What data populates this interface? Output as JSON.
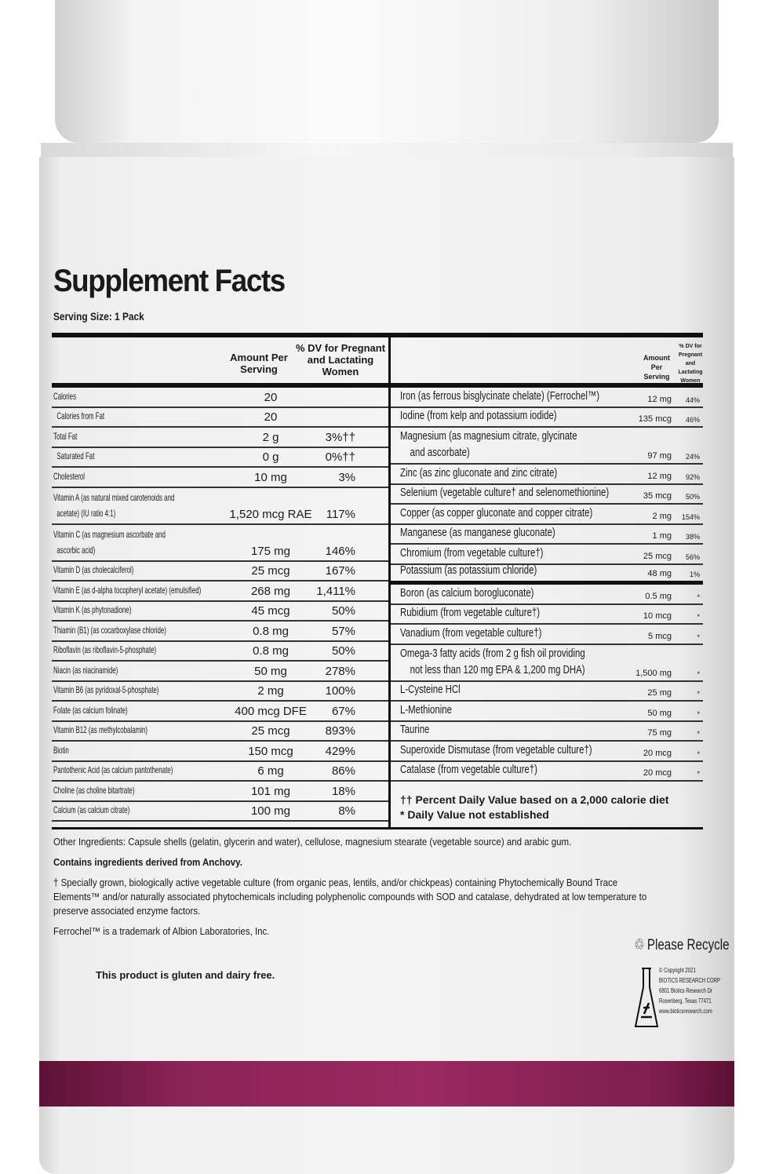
{
  "title": "Supplement Facts",
  "serving_size": "Serving Size: 1 Pack",
  "left_table": {
    "col_amount": "Amount Per Serving",
    "col_dv": "% DV for Pregnant and Lactating Women",
    "rows": [
      {
        "name": "Calories",
        "amount": "20",
        "dv": ""
      },
      {
        "name": "  Calories from Fat",
        "amount": "20",
        "dv": ""
      },
      {
        "name": "Total Fat",
        "amount": "2 g",
        "dv": "3%††"
      },
      {
        "name": "  Saturated Fat",
        "amount": "0 g",
        "dv": "0%††"
      },
      {
        "name": "Cholesterol",
        "amount": "10 mg",
        "dv": "3%"
      },
      {
        "name": "Vitamin A (as natural mixed carotenoids and\n  acetate) (IU ratio 4:1)",
        "amount": "1,520 mcg RAE",
        "dv": "117%"
      },
      {
        "name": "Vitamin C (as magnesium ascorbate and\n  ascorbic acid)",
        "amount": "175 mg",
        "dv": "146%"
      },
      {
        "name": "Vitamin D (as cholecalciferol)",
        "amount": "25 mcg",
        "dv": "167%"
      },
      {
        "name": "Vitamin E (as d-alpha tocopheryl acetate) (emulsified)",
        "amount": "268 mg",
        "dv": "1,411%"
      },
      {
        "name": "Vitamin K (as phytonadione)",
        "amount": "45 mcg",
        "dv": "50%"
      },
      {
        "name": "Thiamin (B1) (as cocarboxylase chloride)",
        "amount": "0.8 mg",
        "dv": "57%"
      },
      {
        "name": "Riboflavin (as riboflavin-5-phosphate)",
        "amount": "0.8 mg",
        "dv": "50%"
      },
      {
        "name": "Niacin (as niacinamide)",
        "amount": "50 mg",
        "dv": "278%"
      },
      {
        "name": "Vitamin B6 (as pyridoxal-5-phosphate)",
        "amount": "2 mg",
        "dv": "100%"
      },
      {
        "name": "Folate (as calcium folinate)",
        "amount": "400 mcg DFE",
        "dv": "67%"
      },
      {
        "name": "Vitamin B12 (as methylcobalamin)",
        "amount": "25  mcg",
        "dv": "893%"
      },
      {
        "name": "Biotin",
        "amount": "150 mcg",
        "dv": "429%"
      },
      {
        "name": "Pantothenic Acid (as calcium pantothenate)",
        "amount": "6 mg",
        "dv": "86%"
      },
      {
        "name": "Choline (as choline bitartrate)",
        "amount": "101 mg",
        "dv": "18%"
      },
      {
        "name": "Calcium (as calcium citrate)",
        "amount": "100 mg",
        "dv": "8%"
      }
    ]
  },
  "right_table": {
    "col_amount": "Amount Per Serving",
    "col_dv": "% DV for Pregnant and Lactating Women",
    "rows": [
      {
        "name": "Iron (as ferrous bisglycinate chelate) (Ferrochel™)",
        "amount": "12 mg",
        "dv": "44%"
      },
      {
        "name": "Iodine (from kelp and potassium iodide)",
        "amount": "135 mcg",
        "dv": "46%"
      },
      {
        "name": "Magnesium (as magnesium citrate, glycinate\n    and ascorbate)",
        "amount": "97 mg",
        "dv": "24%"
      },
      {
        "name": "Zinc (as zinc gluconate and zinc citrate)",
        "amount": "12 mg",
        "dv": "92%"
      },
      {
        "name": "Selenium (vegetable culture† and selenomethionine)",
        "amount": "35 mcg",
        "dv": "50%"
      },
      {
        "name": "Copper (as copper gluconate and copper citrate)",
        "amount": "2 mg",
        "dv": "154%"
      },
      {
        "name": "Manganese (as manganese gluconate)",
        "amount": "1 mg",
        "dv": "38%"
      },
      {
        "name": "Chromium (from vegetable culture†)",
        "amount": "25 mcg",
        "dv": "56%"
      },
      {
        "name": "Potassium (as potassium chloride)",
        "amount": "48 mg",
        "dv": "1%"
      },
      {
        "name": "Boron (as calcium borogluconate)",
        "amount": "0.5 mg",
        "dv": "*"
      },
      {
        "name": "Rubidium (from vegetable culture†)",
        "amount": "10 mcg",
        "dv": "*"
      },
      {
        "name": "Vanadium (from vegetable culture†)",
        "amount": "5 mcg",
        "dv": "*"
      },
      {
        "name": "Omega-3 fatty acids (from 2 g fish oil providing\n    not less than 120 mg EPA & 1,200 mg DHA)",
        "amount": "1,500 mg",
        "dv": "*"
      },
      {
        "name": "L-Cysteine HCl",
        "amount": "25 mg",
        "dv": "*"
      },
      {
        "name": "L-Methionine",
        "amount": "50 mg",
        "dv": "*"
      },
      {
        "name": "Taurine",
        "amount": "75 mg",
        "dv": "*"
      },
      {
        "name": "Superoxide Dismutase (from vegetable culture†)",
        "amount": "20 mcg",
        "dv": "*"
      },
      {
        "name": "Catalase (from vegetable culture†)",
        "amount": "20 mcg",
        "dv": "*"
      }
    ]
  },
  "footnotes": [
    "†† Percent Daily Value based on a 2,000 calorie diet",
    "* Daily Value not established"
  ],
  "other_ingredients": "Other Ingredients: Capsule shells (gelatin, glycerin and water), cellulose, magnesium stearate (vegetable source) and arabic gum.",
  "allergen": "Contains ingredients derived from Anchovy.",
  "culture_note": "† Specially grown, biologically active vegetable culture (from organic peas, lentils, and/or chickpeas) containing Phytochemically Bound Trace Elements™ and/or naturally associated phytochemicals including polyphenolic compounds with SOD and catalase, dehydrated at low temperature to preserve associated enzyme factors.",
  "trademark": "Ferrochel™ is a trademark of Albion Laboratories, Inc.",
  "gluten_free": "This product is gluten and dairy free.",
  "recycle": "Please Recycle",
  "copyright": [
    "© Copyright 2021",
    "BIOTICS RESEARCH CORP",
    "6801 Biotics Research Dr",
    "Rosenberg, Texas 77471",
    "www.bioticsresearch.com"
  ],
  "colors": {
    "band": "#8a2356",
    "text": "#1a1a1a"
  }
}
